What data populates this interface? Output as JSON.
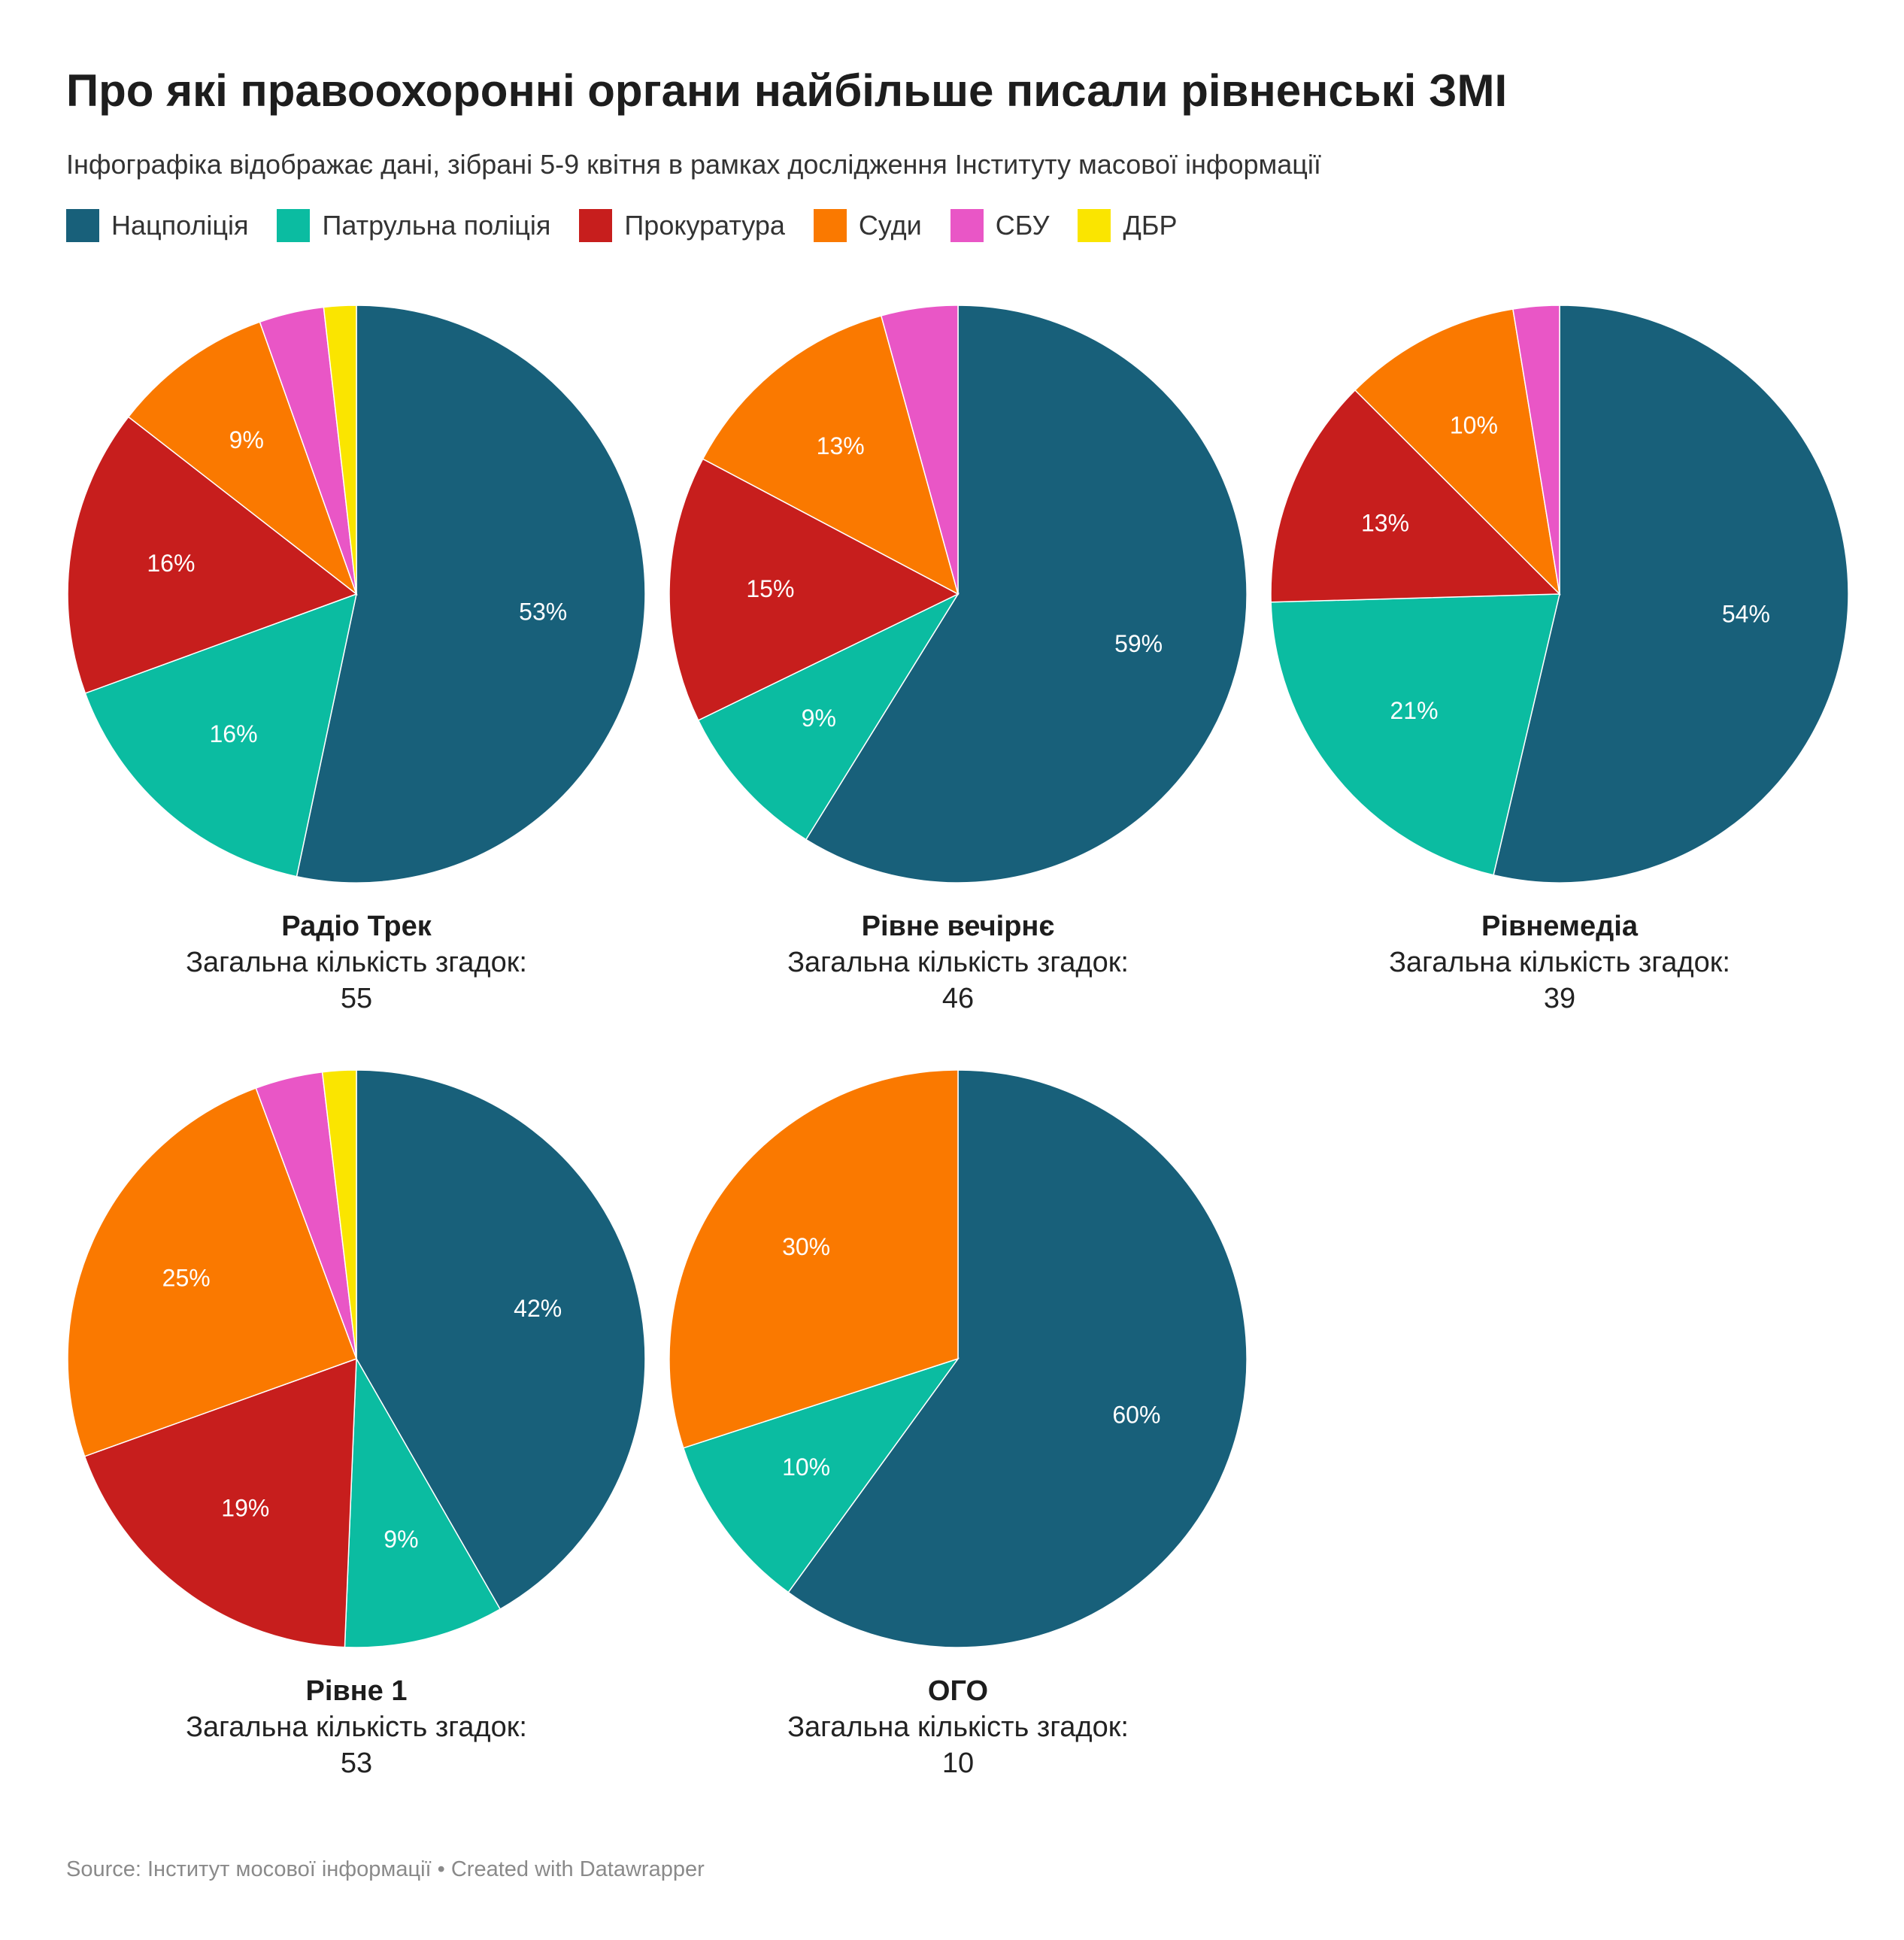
{
  "header": {
    "title": "Про які правоохоронні органи найбільше писали рівненські ЗМІ",
    "subtitle": "Інфографіка відображає дані, зібрані 5-9 квітня в рамках дослідження Інституту масової інформації"
  },
  "legend": [
    {
      "label": "Нацполіція",
      "color": "#18607a"
    },
    {
      "label": "Патрульна поліція",
      "color": "#0bbca1"
    },
    {
      "label": "Прокуратура",
      "color": "#c71e1d"
    },
    {
      "label": "Суди",
      "color": "#fa7900"
    },
    {
      "label": "СБУ",
      "color": "#e956c6"
    },
    {
      "label": "ДБР",
      "color": "#fae500"
    }
  ],
  "charts": [
    {
      "name": "Радіо Трек",
      "total_label": "Загальна кількість згадок:",
      "total": "55"
    },
    {
      "name": "Рівне вечірнє",
      "total_label": "Загальна кількість згадок:",
      "total": "46"
    },
    {
      "name": "Рівнемедіа",
      "total_label": "Загальна кількість згадок:",
      "total": "39"
    },
    {
      "name": "Рівне 1",
      "total_label": "Загальна кількість згадок:",
      "total": "53"
    },
    {
      "name": "ОГО",
      "total_label": "Загальна кількість згадок:",
      "total": "10"
    }
  ],
  "footer": {
    "text": "Source: Інститут мосової інформації • Created with Datawrapper"
  },
  "chart_data": [
    {
      "type": "pie",
      "title": "Радіо Трек",
      "categories": [
        "Нацполіція",
        "Патрульна поліція",
        "Прокуратура",
        "Суди",
        "СБУ",
        "ДБР"
      ],
      "values": [
        53,
        16,
        16,
        9,
        3.6,
        1.8
      ],
      "labels": [
        "53%",
        "16%",
        "16%",
        "9%",
        "",
        ""
      ]
    },
    {
      "type": "pie",
      "title": "Рівне вечірнє",
      "categories": [
        "Нацполіція",
        "Патрульна поліція",
        "Прокуратура",
        "Суди",
        "СБУ"
      ],
      "values": [
        59,
        9,
        15,
        13,
        4.3
      ],
      "labels": [
        "59%",
        "9%",
        "15%",
        "13%",
        ""
      ]
    },
    {
      "type": "pie",
      "title": "Рівнемедіа",
      "categories": [
        "Нацполіція",
        "Патрульна поліція",
        "Прокуратура",
        "Суди",
        "СБУ"
      ],
      "values": [
        54,
        21,
        13,
        10,
        2.6
      ],
      "labels": [
        "54%",
        "21%",
        "13%",
        "10%",
        ""
      ]
    },
    {
      "type": "pie",
      "title": "Рівне 1",
      "categories": [
        "Нацполіція",
        "Патрульна поліція",
        "Прокуратура",
        "Суди",
        "СБУ",
        "ДБР"
      ],
      "values": [
        42,
        9,
        19,
        25,
        3.8,
        1.9
      ],
      "labels": [
        "42%",
        "9%",
        "19%",
        "25%",
        "",
        ""
      ]
    },
    {
      "type": "pie",
      "title": "ОГО",
      "categories": [
        "Нацполіція",
        "Патрульна поліція",
        "Суди"
      ],
      "values": [
        60,
        10,
        30
      ],
      "labels": [
        "60%",
        "10%",
        "30%"
      ]
    }
  ]
}
